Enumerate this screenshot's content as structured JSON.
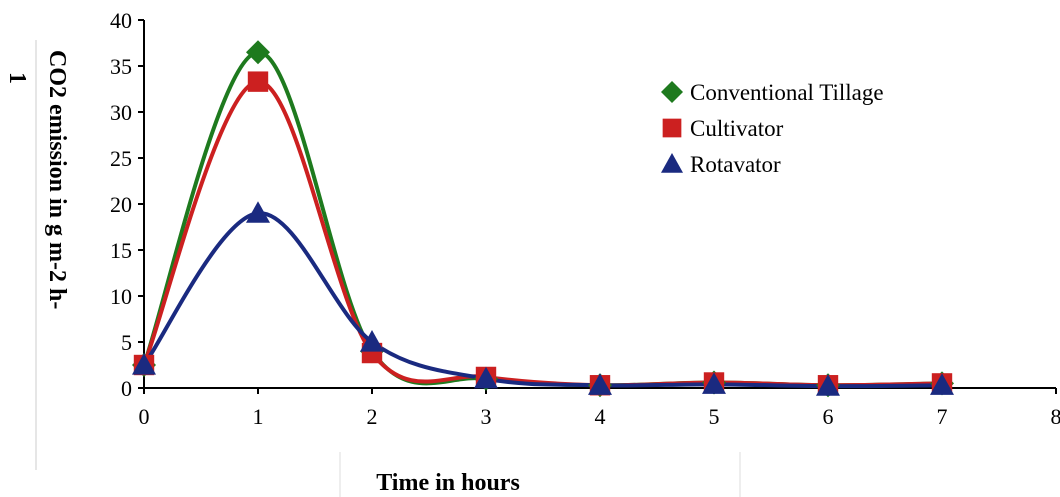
{
  "chart_data": {
    "type": "line",
    "title": "",
    "xlabel": "Time in hours",
    "ylabel_line1": "CO2 emission in g m-2 h-",
    "ylabel_line2": "1",
    "xlim": [
      0,
      8
    ],
    "ylim": [
      0,
      40
    ],
    "xticks": [
      0,
      1,
      2,
      3,
      4,
      5,
      6,
      7,
      8
    ],
    "yticks": [
      0,
      5,
      10,
      15,
      20,
      25,
      30,
      35,
      40
    ],
    "grid": false,
    "legend_position": "top-right",
    "x": [
      0,
      1,
      2,
      3,
      4,
      5,
      6,
      7
    ],
    "series": [
      {
        "name": "Conventional Tillage",
        "color": "#1e7a1e",
        "marker": "diamond",
        "values": [
          2.5,
          36.5,
          4.0,
          1.0,
          0.3,
          0.6,
          0.3,
          0.5
        ]
      },
      {
        "name": "Cultivator",
        "color": "#cc2020",
        "marker": "square",
        "values": [
          2.5,
          33.3,
          3.8,
          1.2,
          0.3,
          0.6,
          0.3,
          0.5
        ]
      },
      {
        "name": "Rotavator",
        "color": "#1a2a80",
        "marker": "triangle",
        "values": [
          2.5,
          19.0,
          5.0,
          1.0,
          0.3,
          0.4,
          0.2,
          0.3
        ]
      }
    ]
  }
}
